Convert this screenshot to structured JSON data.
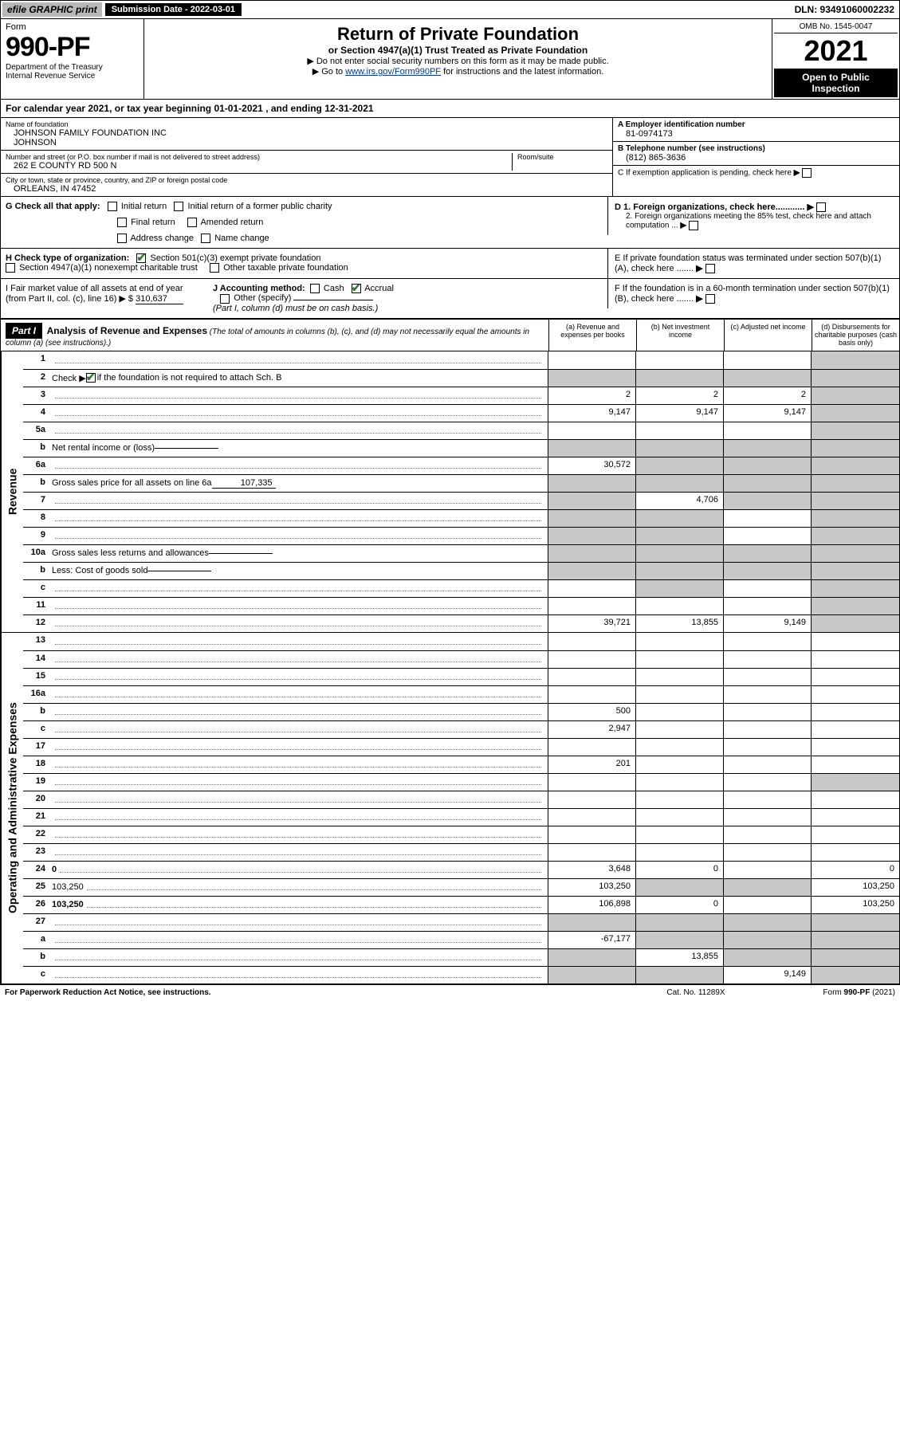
{
  "topbar": {
    "efile": "efile GRAPHIC print",
    "submission_label": "Submission Date - 2022-03-01",
    "dln": "DLN: 93491060002232"
  },
  "header": {
    "form_label": "Form",
    "form_number": "990-PF",
    "dept1": "Department of the Treasury",
    "dept2": "Internal Revenue Service",
    "title": "Return of Private Foundation",
    "subtitle": "or Section 4947(a)(1) Trust Treated as Private Foundation",
    "note1": "▶ Do not enter social security numbers on this form as it may be made public.",
    "note2_pre": "▶ Go to ",
    "note2_link": "www.irs.gov/Form990PF",
    "note2_post": " for instructions and the latest information.",
    "omb": "OMB No. 1545-0047",
    "year": "2021",
    "inspect": "Open to Public Inspection"
  },
  "calendaryear": {
    "label_pre": "For calendar year 2021, or tax year beginning ",
    "begin": "01-01-2021",
    "label_mid": " , and ending ",
    "end": "12-31-2021"
  },
  "entity": {
    "name_label": "Name of foundation",
    "name": "JOHNSON FAMILY FOUNDATION INC",
    "name2": "JOHNSON",
    "addr_label": "Number and street (or P.O. box number if mail is not delivered to street address)",
    "addr": "262 E COUNTY RD 500 N",
    "room_label": "Room/suite",
    "room": "",
    "city_label": "City or town, state or province, country, and ZIP or foreign postal code",
    "city": "ORLEANS, IN  47452",
    "A_label": "A Employer identification number",
    "A_value": "81-0974173",
    "B_label": "B Telephone number (see instructions)",
    "B_value": "(812) 865-3636",
    "C_label": "C If exemption application is pending, check here",
    "D1_label": "D 1. Foreign organizations, check here............",
    "D2_label": "2. Foreign organizations meeting the 85% test, check here and attach computation ...",
    "E_label": "E If private foundation status was terminated under section 507(b)(1)(A), check here .......",
    "F_label": "F If the foundation is in a 60-month termination under section 507(b)(1)(B), check here .......",
    "G_label": "G Check all that apply:",
    "G_initial": "Initial return",
    "G_initial_former": "Initial return of a former public charity",
    "G_final": "Final return",
    "G_amended": "Amended return",
    "G_addr": "Address change",
    "G_name": "Name change",
    "H_label": "H Check type of organization:",
    "H_501c3": "Section 501(c)(3) exempt private foundation",
    "H_4947": "Section 4947(a)(1) nonexempt charitable trust",
    "H_other": "Other taxable private foundation",
    "I_label": "I Fair market value of all assets at end of year (from Part II, col. (c), line 16) ▶ $",
    "I_value": "310,637",
    "J_label": "J Accounting method:",
    "J_cash": "Cash",
    "J_accrual": "Accrual",
    "J_other": "Other (specify)",
    "J_note": "(Part I, column (d) must be on cash basis.)"
  },
  "part1": {
    "part_label": "Part I",
    "title": "Analysis of Revenue and Expenses",
    "title_note": "(The total of amounts in columns (b), (c), and (d) may not necessarily equal the amounts in column (a) (see instructions).)",
    "col_a": "(a) Revenue and expenses per books",
    "col_b": "(b) Net investment income",
    "col_c": "(c) Adjusted net income",
    "col_d": "(d) Disbursements for charitable purposes (cash basis only)",
    "side_revenue": "Revenue",
    "side_expenses": "Operating and Administrative Expenses"
  },
  "lines": {
    "l1": {
      "n": "1",
      "d": "",
      "a": "",
      "b": "",
      "c": "",
      "d_gray": true
    },
    "l2": {
      "n": "2",
      "d_pre": "Check ▶ ",
      "d_post": " if the foundation is not required to attach Sch. B",
      "checked": true,
      "nocols": true
    },
    "l3": {
      "n": "3",
      "d": "",
      "a": "2",
      "b": "2",
      "c": "2",
      "d_gray": true
    },
    "l4": {
      "n": "4",
      "d": "",
      "a": "9,147",
      "b": "9,147",
      "c": "9,147",
      "d_gray": true
    },
    "l5a": {
      "n": "5a",
      "d": "",
      "a": "",
      "b": "",
      "c": "",
      "d_gray": true
    },
    "l5b": {
      "n": "b",
      "d": "Net rental income or (loss)",
      "nocols": true,
      "inneramt": ""
    },
    "l6a": {
      "n": "6a",
      "d": "",
      "a": "30,572",
      "b": "",
      "b_gray": true,
      "c": "",
      "c_gray": true,
      "d_gray": true
    },
    "l6b": {
      "n": "b",
      "d": "Gross sales price for all assets on line 6a",
      "nocols": true,
      "inneramt": "107,335"
    },
    "l7": {
      "n": "7",
      "d": "",
      "a": "",
      "a_gray": true,
      "b": "4,706",
      "c": "",
      "c_gray": true,
      "d_gray": true
    },
    "l8": {
      "n": "8",
      "d": "",
      "a": "",
      "a_gray": true,
      "b": "",
      "b_gray": true,
      "c": "",
      "d_gray": true
    },
    "l9": {
      "n": "9",
      "d": "",
      "a": "",
      "a_gray": true,
      "b": "",
      "b_gray": true,
      "c": "",
      "d_gray": true
    },
    "l10a": {
      "n": "10a",
      "d": "Gross sales less returns and allowances",
      "nocols": true,
      "inneramt": ""
    },
    "l10b": {
      "n": "b",
      "d": "Less: Cost of goods sold",
      "nocols": true,
      "inneramt": ""
    },
    "l10c": {
      "n": "c",
      "d": "",
      "a": "",
      "b": "",
      "b_gray": true,
      "c": "",
      "d_gray": true
    },
    "l11": {
      "n": "11",
      "d": "",
      "a": "",
      "b": "",
      "c": "",
      "d_gray": true
    },
    "l12": {
      "n": "12",
      "d": "",
      "a": "39,721",
      "b": "13,855",
      "c": "9,149",
      "d_gray": true,
      "bold": true
    },
    "l13": {
      "n": "13",
      "d": "",
      "a": "",
      "b": "",
      "c": ""
    },
    "l14": {
      "n": "14",
      "d": "",
      "a": "",
      "b": "",
      "c": ""
    },
    "l15": {
      "n": "15",
      "d": "",
      "a": "",
      "b": "",
      "c": ""
    },
    "l16a": {
      "n": "16a",
      "d": "",
      "a": "",
      "b": "",
      "c": ""
    },
    "l16b": {
      "n": "b",
      "d": "",
      "a": "500",
      "b": "",
      "c": ""
    },
    "l16c": {
      "n": "c",
      "d": "",
      "a": "2,947",
      "b": "",
      "c": ""
    },
    "l17": {
      "n": "17",
      "d": "",
      "a": "",
      "b": "",
      "c": ""
    },
    "l18": {
      "n": "18",
      "d": "",
      "a": "201",
      "b": "",
      "c": ""
    },
    "l19": {
      "n": "19",
      "d": "",
      "a": "",
      "b": "",
      "c": "",
      "d_gray": true
    },
    "l20": {
      "n": "20",
      "d": "",
      "a": "",
      "b": "",
      "c": ""
    },
    "l21": {
      "n": "21",
      "d": "",
      "a": "",
      "b": "",
      "c": ""
    },
    "l22": {
      "n": "22",
      "d": "",
      "a": "",
      "b": "",
      "c": ""
    },
    "l23": {
      "n": "23",
      "d": "",
      "a": "",
      "b": "",
      "c": ""
    },
    "l24": {
      "n": "24",
      "d": "0",
      "a": "3,648",
      "b": "0",
      "c": "",
      "bold": true
    },
    "l25": {
      "n": "25",
      "d": "103,250",
      "a": "103,250",
      "b": "",
      "b_gray": true,
      "c": "",
      "c_gray": true
    },
    "l26": {
      "n": "26",
      "d": "103,250",
      "a": "106,898",
      "b": "0",
      "c": "",
      "bold": true
    },
    "l27": {
      "n": "27",
      "d": "",
      "a": "",
      "a_gray": true,
      "b": "",
      "b_gray": true,
      "c": "",
      "c_gray": true,
      "d_gray": true
    },
    "l27a": {
      "n": "a",
      "d": "",
      "a": "-67,177",
      "b": "",
      "b_gray": true,
      "c": "",
      "c_gray": true,
      "d_gray": true,
      "bold": true
    },
    "l27b": {
      "n": "b",
      "d": "",
      "a": "",
      "a_gray": true,
      "b": "13,855",
      "c": "",
      "c_gray": true,
      "d_gray": true,
      "bold": true
    },
    "l27c": {
      "n": "c",
      "d": "",
      "a": "",
      "a_gray": true,
      "b": "",
      "b_gray": true,
      "c": "9,149",
      "d_gray": true,
      "bold": true
    }
  },
  "footer": {
    "left": "For Paperwork Reduction Act Notice, see instructions.",
    "center": "Cat. No. 11289X",
    "right": "Form 990-PF (2021)"
  },
  "colors": {
    "gray_bg": "#c8c8c8",
    "green_check": "#2a7a2a",
    "link": "#003399"
  }
}
